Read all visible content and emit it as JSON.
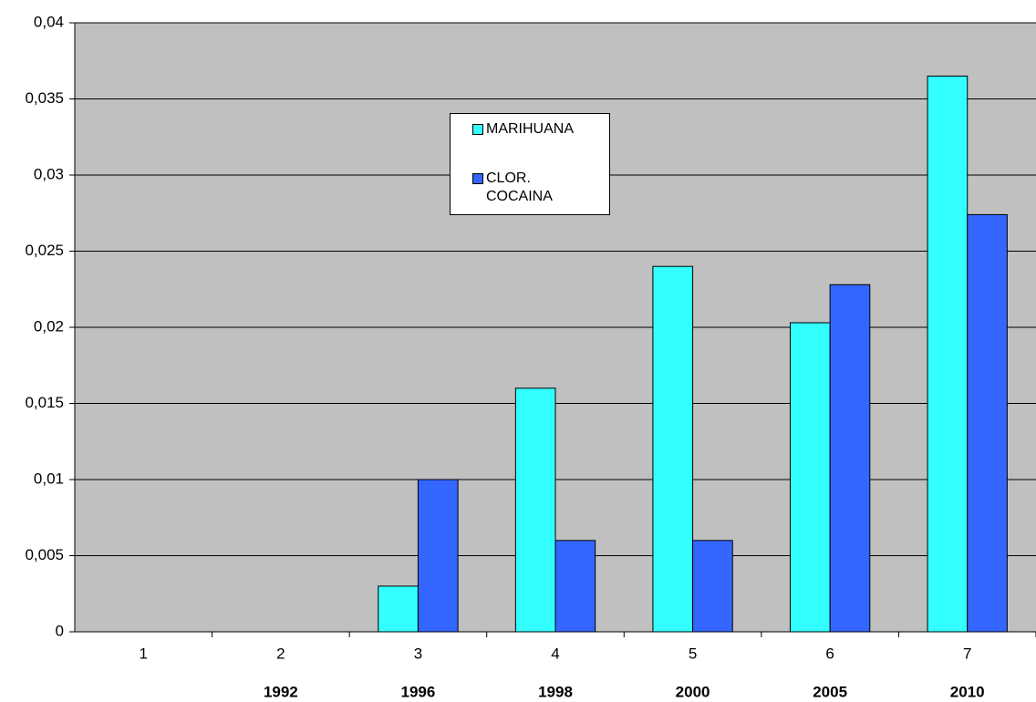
{
  "chart_data": {
    "type": "bar",
    "categories": [
      "1",
      "2",
      "3",
      "4",
      "5",
      "6",
      "7"
    ],
    "years": [
      null,
      "1992",
      "1996",
      "1998",
      "2000",
      "2005",
      "2010"
    ],
    "series": [
      {
        "name": "MARIHUANA",
        "color": "#33ffff",
        "values": [
          0,
          0,
          0.003,
          0.016,
          0.024,
          0.0203,
          0.0365
        ]
      },
      {
        "name": "CLOR. COCAINA",
        "color": "#3366ff",
        "values": [
          0,
          0,
          0.01,
          0.006,
          0.006,
          0.0228,
          0.0274
        ]
      }
    ],
    "ylim": [
      0,
      0.04
    ],
    "yticks": [
      0,
      {
        "value": 0.005,
        "label": "0,005"
      },
      {
        "value": 0.01,
        "label": "0,01"
      },
      {
        "value": 0.015,
        "label": "0,015"
      },
      {
        "value": 0.02,
        "label": "0,02"
      },
      {
        "value": 0.025,
        "label": "0,025"
      },
      {
        "value": 0.03,
        "label": "0,03"
      },
      {
        "value": 0.035,
        "label": "0,035"
      },
      {
        "value": 0.04,
        "label": "0,04"
      }
    ],
    "grid": true
  }
}
